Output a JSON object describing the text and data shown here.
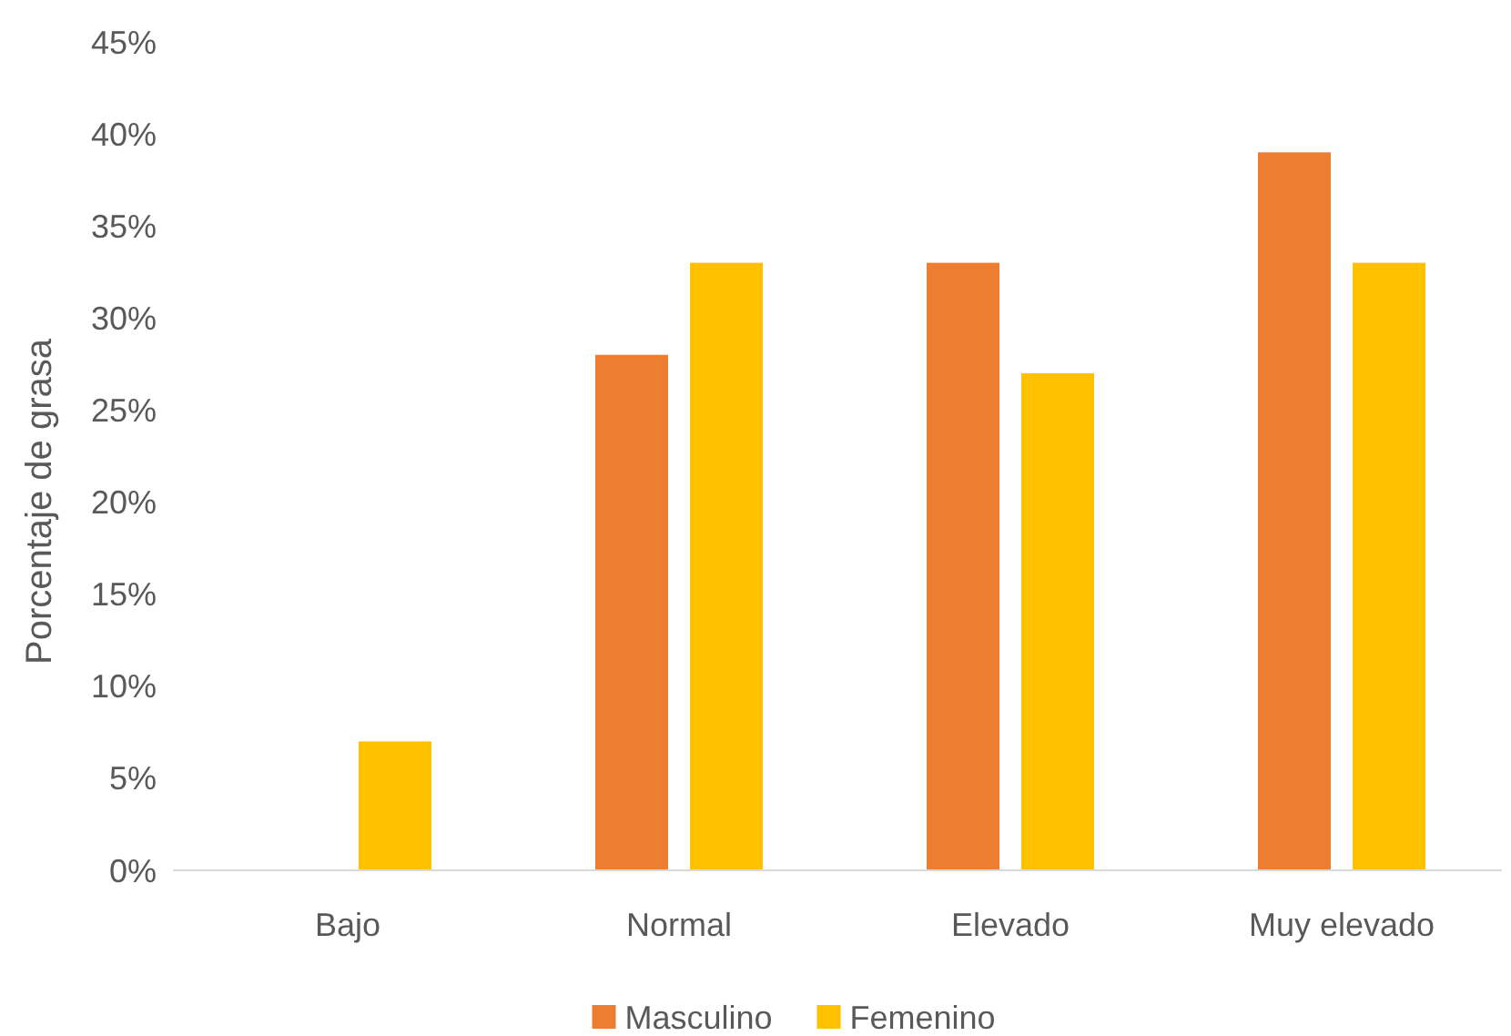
{
  "chart_data": {
    "type": "bar",
    "ylabel": "Porcentaje de grasa",
    "categories": [
      "Bajo",
      "Normal",
      "Elevado",
      "Muy elevado"
    ],
    "series": [
      {
        "name": "Masculino",
        "color": "#ed7d31",
        "values": [
          0,
          28,
          33,
          39
        ]
      },
      {
        "name": "Femenino",
        "color": "#ffc000",
        "values": [
          7,
          33,
          27,
          33
        ]
      }
    ],
    "ylim": [
      0,
      45
    ],
    "yticks": [
      {
        "value": 0,
        "label": "0%"
      },
      {
        "value": 5,
        "label": "5%"
      },
      {
        "value": 10,
        "label": "10%"
      },
      {
        "value": 15,
        "label": "15%"
      },
      {
        "value": 20,
        "label": "20%"
      },
      {
        "value": 25,
        "label": "25%"
      },
      {
        "value": 30,
        "label": "30%"
      },
      {
        "value": 35,
        "label": "35%"
      },
      {
        "value": 40,
        "label": "40%"
      },
      {
        "value": 45,
        "label": "45%"
      }
    ],
    "grid": false,
    "legend": "bottom"
  }
}
